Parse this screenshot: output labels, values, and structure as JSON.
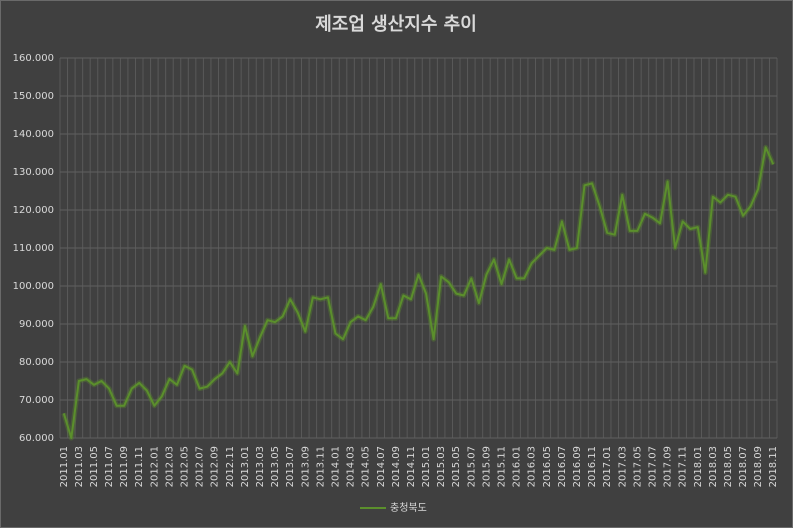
{
  "chart_data": {
    "type": "line",
    "title": "제조업 생산지수 추이",
    "categories": [
      "2011.01",
      null,
      "2011.03",
      null,
      "2011.05",
      null,
      "2011.07",
      null,
      "2011.09",
      null,
      "2011.11",
      null,
      "2012.01",
      null,
      "2012.03",
      null,
      "2012.05",
      null,
      "2012.07",
      null,
      "2012.09",
      null,
      "2012.11",
      null,
      "2013.01",
      null,
      "2013.03",
      null,
      "2013.05",
      null,
      "2013.07",
      null,
      "2013.09",
      null,
      "2013.11",
      null,
      "2014.01",
      null,
      "2014.03",
      null,
      "2014.05",
      null,
      "2014.07",
      null,
      "2014.09",
      null,
      "2014.11",
      null,
      "2015.01",
      null,
      "2015.03",
      null,
      "2015.05",
      null,
      "2015.07",
      null,
      "2015.09",
      null,
      "2015.11",
      null,
      "2016.01",
      null,
      "2016.03",
      null,
      "2016.05",
      null,
      "2016.07",
      null,
      "2016.09",
      null,
      "2016.11",
      null,
      "2017.01",
      null,
      "2017.03",
      null,
      "2017.05",
      null,
      "2017.07",
      null,
      "2017.09",
      null,
      "2017.11",
      null,
      "2018.01",
      null,
      "2018.03",
      null,
      "2018.05",
      null,
      "2018.07",
      null,
      "2018.09",
      null,
      "2018.11"
    ],
    "series": [
      {
        "name": "충청북도",
        "color": "#5b8f2c",
        "values": [
          66.5,
          60,
          75,
          75.5,
          74,
          75,
          73,
          68.5,
          68.5,
          73,
          74.5,
          72.5,
          68.5,
          71,
          75.5,
          74,
          79,
          78,
          73,
          73.5,
          75.5,
          77,
          80,
          77,
          89.5,
          81.5,
          86.5,
          91,
          90.5,
          92,
          96.5,
          93,
          88,
          97,
          96.5,
          97,
          87.5,
          86,
          90.5,
          92,
          91,
          94.5,
          100.5,
          91.5,
          91.5,
          97.5,
          96.5,
          103,
          98,
          86,
          102.5,
          101,
          98,
          97.5,
          102,
          95.5,
          103,
          107,
          100.5,
          107,
          102,
          102,
          106,
          108,
          110,
          109.5,
          117,
          109.5,
          110,
          126.5,
          127,
          121,
          114,
          113.5,
          124,
          114.5,
          114.5,
          119,
          118,
          116.5,
          127.5,
          110,
          117,
          115,
          115.5,
          103.5,
          123.5,
          122,
          124,
          123.5,
          118.5,
          121,
          125.5,
          136.5,
          132
        ]
      }
    ],
    "ylim": [
      60,
      160
    ],
    "yticks": [
      {
        "value": 60,
        "label": "60.000"
      },
      {
        "value": 70,
        "label": "70.000"
      },
      {
        "value": 80,
        "label": "80.000"
      },
      {
        "value": 90,
        "label": "90.000"
      },
      {
        "value": 100,
        "label": "100.000"
      },
      {
        "value": 110,
        "label": "110.000"
      },
      {
        "value": 120,
        "label": "120.000"
      },
      {
        "value": 130,
        "label": "130.000"
      },
      {
        "value": 140,
        "label": "140.000"
      },
      {
        "value": 150,
        "label": "150.000"
      },
      {
        "value": 160,
        "label": "160.000"
      }
    ],
    "grid": true,
    "legend": "bottom"
  }
}
